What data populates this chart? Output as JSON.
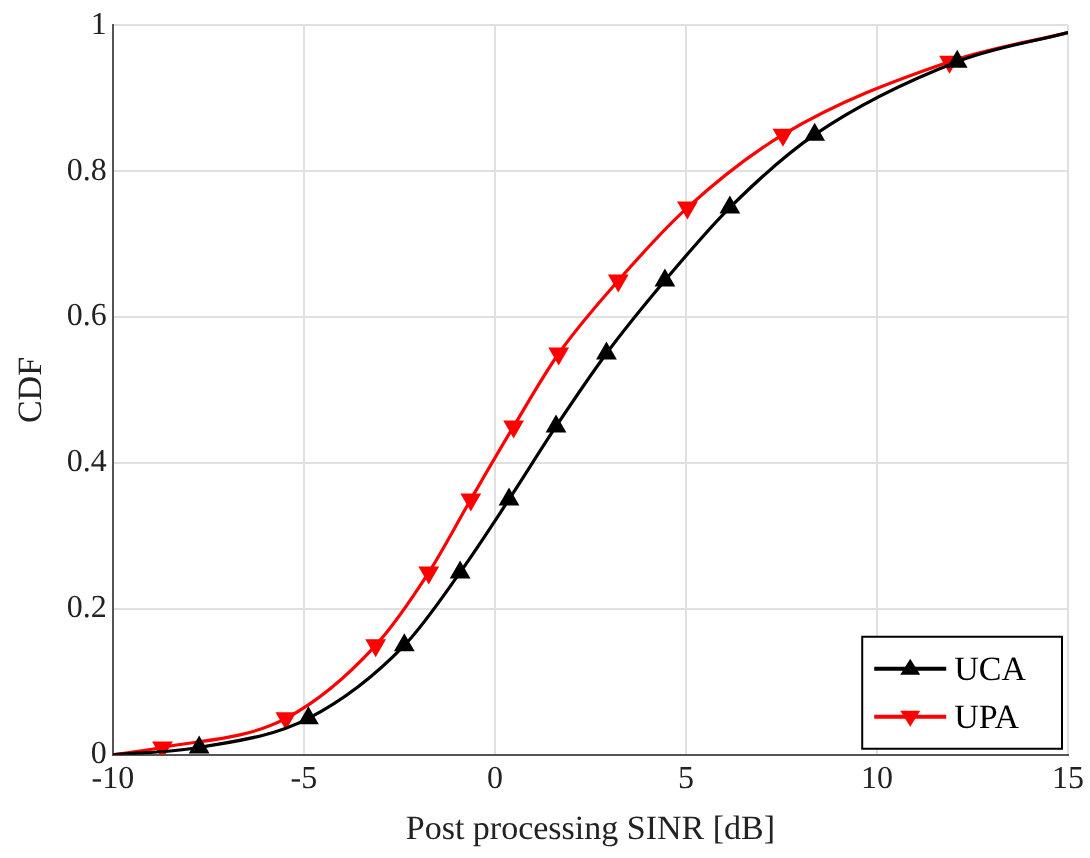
{
  "chart_data": {
    "type": "line",
    "xlabel": "Post processing SINR [dB]",
    "ylabel": "CDF",
    "xlim": [
      -10,
      15
    ],
    "xticks": [
      -10,
      -5,
      0,
      5,
      10,
      15
    ],
    "ylim": [
      0,
      1
    ],
    "yticks": [
      0,
      0.2,
      0.4,
      0.6,
      0.8,
      1
    ],
    "grid": true,
    "legend": "bottom right",
    "line_style": "solid",
    "series": [
      {
        "name": "UCA",
        "color": "#000000",
        "marker": "triangle",
        "x": [
          -10,
          -7.74,
          -4.88,
          -2.37,
          -0.91,
          0.37,
          1.6,
          2.92,
          4.45,
          6.15,
          8.37,
          12.1,
          15
        ],
        "values": [
          0,
          0.01,
          0.05,
          0.15,
          0.25,
          0.35,
          0.45,
          0.55,
          0.65,
          0.75,
          0.85,
          0.95,
          0.99
        ]
      },
      {
        "name": "UPA",
        "color": "#ff0000",
        "marker": "triangle-down",
        "x": [
          -10,
          -8.7,
          -5.47,
          -3.12,
          -1.73,
          -0.63,
          0.49,
          1.67,
          3.23,
          5.04,
          7.54,
          11.9,
          15
        ],
        "values": [
          0,
          0.01,
          0.05,
          0.15,
          0.25,
          0.35,
          0.45,
          0.55,
          0.65,
          0.75,
          0.85,
          0.95,
          0.99
        ]
      }
    ]
  }
}
